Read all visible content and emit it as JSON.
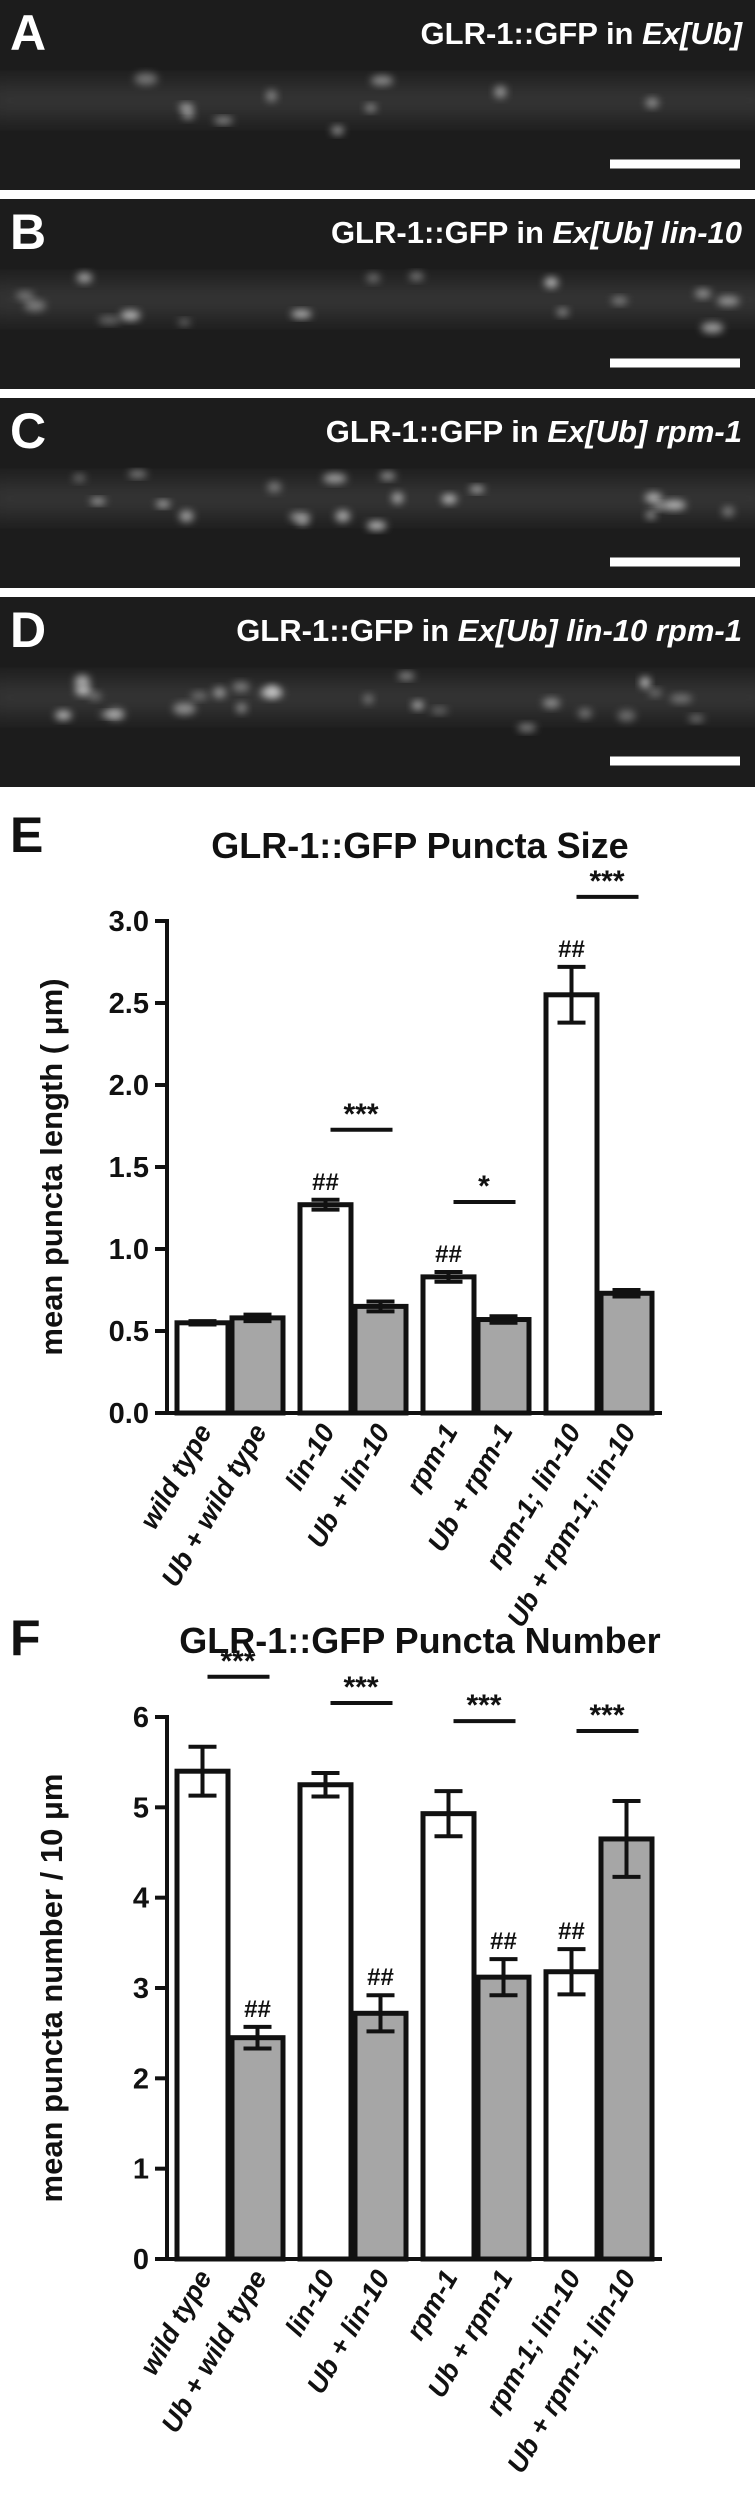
{
  "panels": [
    {
      "letter": "A",
      "caption": "GLR-1::GFP in ",
      "caption_italic": "Ex[Ub]"
    },
    {
      "letter": "B",
      "caption": "GLR-1::GFP in ",
      "caption_italic": "Ex[Ub] lin-10"
    },
    {
      "letter": "C",
      "caption": "GLR-1::GFP in ",
      "caption_italic": "Ex[Ub] rpm-1"
    },
    {
      "letter": "D",
      "caption": "GLR-1::GFP in ",
      "caption_italic": "Ex[Ub] lin-10 rpm-1"
    }
  ],
  "chart_data": [
    {
      "type": "bar",
      "panel_label": "E",
      "title": "GLR-1::GFP Puncta Size",
      "y_label": "mean puncta length ( μm)",
      "categories": [
        "wild type",
        "Ub + wild type",
        "lin-10",
        "Ub + lin-10",
        "rpm-1",
        "Ub + rpm-1",
        "rpm-1; lin-10",
        "Ub + rpm-1; lin-10"
      ],
      "series": [
        {
          "values": [
            0.55,
            0.58,
            1.27,
            0.65,
            0.83,
            0.57,
            2.55,
            0.73
          ],
          "errors": [
            0.01,
            0.02,
            0.03,
            0.03,
            0.03,
            0.02,
            0.17,
            0.02
          ],
          "colors": [
            "#ffffff",
            "#a6a6a6",
            "#ffffff",
            "#a6a6a6",
            "#ffffff",
            "#a6a6a6",
            "#ffffff",
            "#a6a6a6"
          ]
        }
      ],
      "bar_annotations": [
        null,
        null,
        "##",
        null,
        "##",
        null,
        "##",
        null
      ],
      "pair_labels": [
        null,
        "***",
        "*",
        "***"
      ],
      "ylim": [
        0,
        3.0
      ],
      "yticks": [
        {
          "value": 0,
          "label": "0.0"
        },
        0.5,
        {
          "value": 1,
          "label": "1.0"
        },
        1.5,
        {
          "value": 2,
          "label": "2.0"
        },
        2.5,
        {
          "value": 3,
          "label": "3.0"
        }
      ]
    },
    {
      "type": "bar",
      "panel_label": "F",
      "title": "GLR-1::GFP Puncta Number",
      "y_label": "mean puncta number / 10 μm",
      "categories": [
        "wild type",
        "Ub + wild type",
        "lin-10",
        "Ub + lin-10",
        "rpm-1",
        "Ub + rpm-1",
        "rpm-1; lin-10",
        "Ub + rpm-1; lin-10"
      ],
      "series": [
        {
          "values": [
            5.4,
            2.45,
            5.25,
            2.72,
            4.93,
            3.12,
            3.18,
            4.65
          ],
          "errors": [
            0.27,
            0.12,
            0.13,
            0.2,
            0.25,
            0.2,
            0.25,
            0.42
          ],
          "colors": [
            "#ffffff",
            "#a6a6a6",
            "#ffffff",
            "#a6a6a6",
            "#ffffff",
            "#a6a6a6",
            "#ffffff",
            "#a6a6a6"
          ]
        }
      ],
      "bar_annotations": [
        null,
        "##",
        null,
        "##",
        null,
        "##",
        "##",
        null
      ],
      "pair_labels": [
        "***",
        "***",
        "***",
        "***"
      ],
      "ylim": [
        0,
        6
      ],
      "yticks": [
        0,
        1,
        2,
        3,
        4,
        5,
        6
      ]
    }
  ]
}
